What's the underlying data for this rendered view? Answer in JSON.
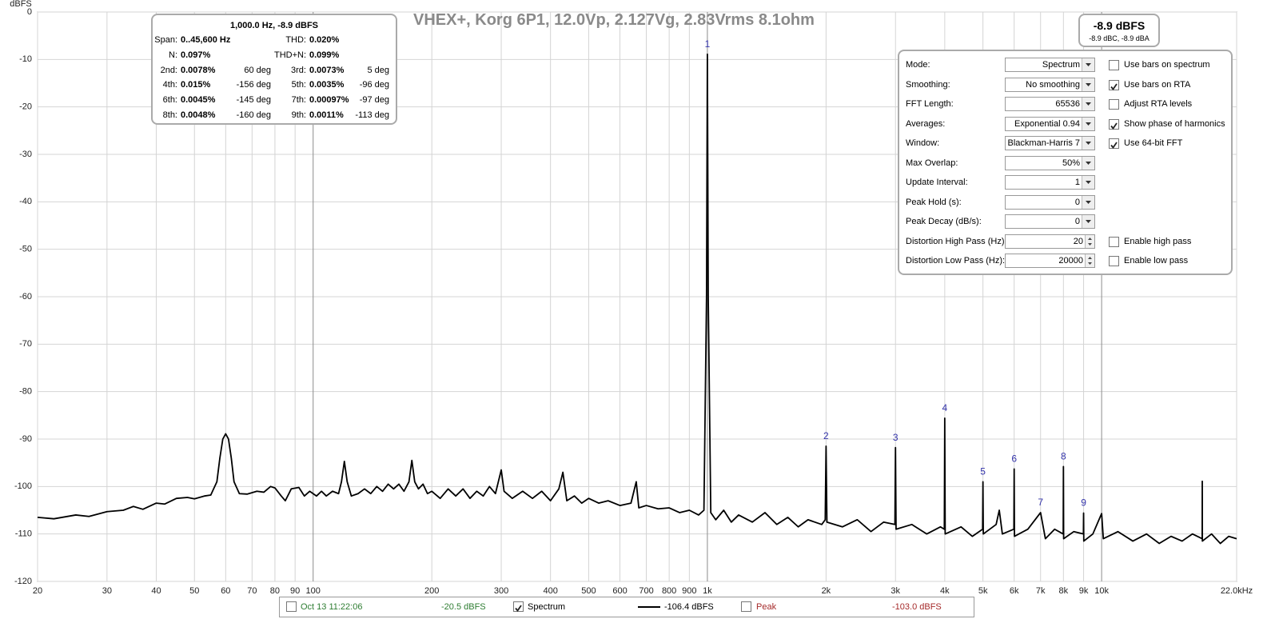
{
  "chart_data": {
    "type": "line",
    "title": "VHEX+, Korg 6P1, 12.0Vp, 2.127Vg, 2.83Vrms 8.1ohm",
    "y_label": "dBFS",
    "xscale": "log",
    "grid": true,
    "xlim": [
      20,
      22000
    ],
    "ylim": [
      -120,
      0
    ],
    "xticks": [
      20,
      30,
      40,
      50,
      60,
      70,
      80,
      90,
      100,
      200,
      300,
      400,
      500,
      600,
      700,
      800,
      900,
      {
        "value": 1000,
        "label": "1k"
      },
      {
        "value": 2000,
        "label": "2k"
      },
      {
        "value": 3000,
        "label": "3k"
      },
      {
        "value": 4000,
        "label": "4k"
      },
      {
        "value": 5000,
        "label": "5k"
      },
      {
        "value": 6000,
        "label": "6k"
      },
      {
        "value": 7000,
        "label": "7k"
      },
      {
        "value": 8000,
        "label": "8k"
      },
      {
        "value": 9000,
        "label": "9k"
      },
      {
        "value": 10000,
        "label": "10k"
      },
      {
        "value": 22000,
        "label": "22.0kHz"
      }
    ],
    "yticks": [
      0,
      -10,
      -20,
      -30,
      -40,
      -50,
      -60,
      -70,
      -80,
      -90,
      -100,
      -110,
      -120
    ],
    "x": [
      20,
      22,
      25,
      27,
      30,
      33,
      35,
      37,
      40,
      42,
      45,
      48,
      50,
      53,
      55,
      57,
      58,
      59,
      60,
      61,
      62,
      63,
      65,
      68,
      72,
      75,
      78,
      80,
      83,
      85,
      88,
      92,
      95,
      98,
      102,
      105,
      108,
      112,
      116,
      118,
      120,
      122,
      125,
      130,
      135,
      140,
      145,
      150,
      155,
      160,
      165,
      170,
      175,
      178,
      181,
      185,
      190,
      195,
      200,
      210,
      220,
      230,
      240,
      250,
      260,
      270,
      280,
      290,
      300,
      305,
      320,
      340,
      360,
      380,
      400,
      420,
      430,
      440,
      460,
      480,
      500,
      530,
      560,
      600,
      640,
      660,
      670,
      700,
      750,
      800,
      850,
      900,
      950,
      980,
      995,
      1000,
      1005,
      1020,
      1050,
      1100,
      1150,
      1200,
      1300,
      1400,
      1500,
      1600,
      1700,
      1800,
      1950,
      1990,
      2000,
      2010,
      2200,
      2400,
      2600,
      2800,
      2990,
      3000,
      3010,
      3300,
      3600,
      3900,
      3990,
      4000,
      4010,
      4400,
      4700,
      4990,
      5000,
      5010,
      5400,
      5500,
      5600,
      5990,
      6000,
      6010,
      6500,
      7000,
      7200,
      7600,
      7990,
      8000,
      8010,
      8500,
      8990,
      9000,
      9010,
      9500,
      10000,
      10100,
      11000,
      12000,
      13000,
      14000,
      15000,
      16000,
      17000,
      17990,
      18000,
      18010,
      19000,
      20000,
      21000,
      22000
    ],
    "series": [
      {
        "color": "#000000",
        "values": [
          -106.5,
          -106.8,
          -106,
          -106.3,
          -105.3,
          -105,
          -104.2,
          -104.8,
          -103.5,
          -103.7,
          -102.5,
          -102.3,
          -102.6,
          -102,
          -101.8,
          -99,
          -94,
          -90,
          -88.9,
          -90,
          -94,
          -99,
          -101.5,
          -101.6,
          -101,
          -101.2,
          -100,
          -100.3,
          -102,
          -103,
          -100.5,
          -100.2,
          -102,
          -101,
          -102,
          -101,
          -102,
          -101,
          -101.5,
          -99,
          -94.7,
          -99,
          -102,
          -101.5,
          -100.5,
          -101.5,
          -100,
          -101,
          -99.5,
          -100.5,
          -99.5,
          -101,
          -99,
          -94.5,
          -99,
          -100.5,
          -99.5,
          -101.5,
          -101,
          -102.5,
          -100.5,
          -102,
          -100.5,
          -102.5,
          -101,
          -102,
          -100,
          -101.5,
          -96.5,
          -101,
          -102.5,
          -101,
          -102.5,
          -101,
          -103,
          -100.5,
          -97,
          -103,
          -102,
          -103.5,
          -102.5,
          -103.5,
          -103,
          -104,
          -103.5,
          -99,
          -104.5,
          -104,
          -104.7,
          -104.5,
          -105.5,
          -105,
          -106,
          -105,
          -60,
          -8.9,
          -60,
          -105.5,
          -107,
          -105,
          -107.5,
          -106,
          -107.5,
          -105.5,
          -108,
          -106.5,
          -108.5,
          -107,
          -108,
          -107,
          -91.5,
          -107.5,
          -108.5,
          -107,
          -109.5,
          -107.5,
          -108,
          -91.8,
          -109,
          -108,
          -110,
          -108.5,
          -109,
          -85.6,
          -110,
          -108.5,
          -110.5,
          -109,
          -99,
          -110,
          -108,
          -105,
          -110,
          -109,
          -96.3,
          -110.5,
          -109,
          -105.5,
          -111,
          -109,
          -110,
          -95.8,
          -111,
          -109.5,
          -110,
          -105.6,
          -111.5,
          -110,
          -105.7,
          -111,
          -109.5,
          -111.5,
          -110,
          -112,
          -110.5,
          -111.5,
          -110,
          -111,
          -98.9,
          -111.5,
          -110,
          -112,
          -110.5,
          -111
        ]
      }
    ],
    "annotation_color": "#3333aa",
    "annotations": [
      {
        "text": "1",
        "x": 1000,
        "y": -8.9
      },
      {
        "text": "2",
        "x": 2000,
        "y": -91.5
      },
      {
        "text": "3",
        "x": 3000,
        "y": -91.8
      },
      {
        "text": "4",
        "x": 4000,
        "y": -85.6
      },
      {
        "text": "5",
        "x": 5000,
        "y": -99
      },
      {
        "text": "6",
        "x": 6000,
        "y": -96.3
      },
      {
        "text": "7",
        "x": 7000,
        "y": -105.5
      },
      {
        "text": "8",
        "x": 8000,
        "y": -95.8
      },
      {
        "text": "9",
        "x": 9000,
        "y": -105.6
      }
    ]
  },
  "info_box": {
    "header": "1,000.0 Hz, -8.9 dBFS",
    "rows": [
      [
        "Span:",
        "0..45,600 Hz",
        "THD:",
        "0.020%"
      ],
      [
        "N:",
        "0.097%",
        "THD+N:",
        "0.099%"
      ],
      [
        "2nd:",
        "0.0078%",
        "60 deg",
        "3rd:",
        "0.0073%",
        "5 deg"
      ],
      [
        "4th:",
        "0.015%",
        "-156 deg",
        "5th:",
        "0.0035%",
        "-96 deg"
      ],
      [
        "6th:",
        "0.0045%",
        "-145 deg",
        "7th:",
        "0.00097%",
        "-97 deg"
      ],
      [
        "8th:",
        "0.0048%",
        "-160 deg",
        "9th:",
        "0.0011%",
        "-113 deg"
      ]
    ]
  },
  "level_box": {
    "main": "-8.9 dBFS",
    "sub": "-8.9 dBC, -8.9 dBA"
  },
  "settings": {
    "rows": [
      {
        "label": "Mode:",
        "value": "Spectrum",
        "control": "dropdown",
        "checkbox": {
          "label": "Use bars on spectrum",
          "checked": false
        }
      },
      {
        "label": "Smoothing:",
        "value": "No  smoothing",
        "control": "dropdown",
        "checkbox": {
          "label": "Use bars on RTA",
          "checked": true
        }
      },
      {
        "label": "FFT Length:",
        "value": "65536",
        "control": "dropdown",
        "checkbox": {
          "label": "Adjust RTA levels",
          "checked": false
        }
      },
      {
        "label": "Averages:",
        "value": "Exponential 0.94",
        "control": "dropdown",
        "checkbox": {
          "label": "Show phase of harmonics",
          "checked": true
        }
      },
      {
        "label": "Window:",
        "value": "Blackman-Harris 7",
        "control": "dropdown",
        "checkbox": {
          "label": "Use 64-bit FFT",
          "checked": true
        }
      },
      {
        "label": "Max Overlap:",
        "value": "50%",
        "control": "dropdown"
      },
      {
        "label": "Update Interval:",
        "value": "1",
        "control": "dropdown"
      },
      {
        "label": "Peak Hold (s):",
        "value": "0",
        "control": "dropdown"
      },
      {
        "label": "Peak Decay (dB/s):",
        "value": "0",
        "control": "dropdown"
      },
      {
        "label": "Distortion High Pass (Hz):",
        "value": "20",
        "control": "spinner",
        "checkbox": {
          "label": "Enable high pass",
          "checked": false
        }
      },
      {
        "label": "Distortion Low Pass (Hz):",
        "value": "20000",
        "control": "spinner",
        "checkbox": {
          "label": "Enable low pass",
          "checked": false
        }
      }
    ]
  },
  "legend_bar": {
    "items": [
      {
        "text": "Oct 13 11:22:06",
        "color": "#2e7d32",
        "checked": false
      },
      {
        "text": "-20.5 dBFS",
        "color": "#2e7d32"
      },
      {
        "text": "Spectrum",
        "color": "#000000",
        "checked": true
      },
      {
        "text": "-106.4 dBFS",
        "color": "#000000",
        "line_color": "#000000"
      },
      {
        "text": "Peak",
        "color": "#a52a2a",
        "checked": false
      },
      {
        "text": "-103.0 dBFS",
        "color": "#a52a2a"
      }
    ]
  }
}
